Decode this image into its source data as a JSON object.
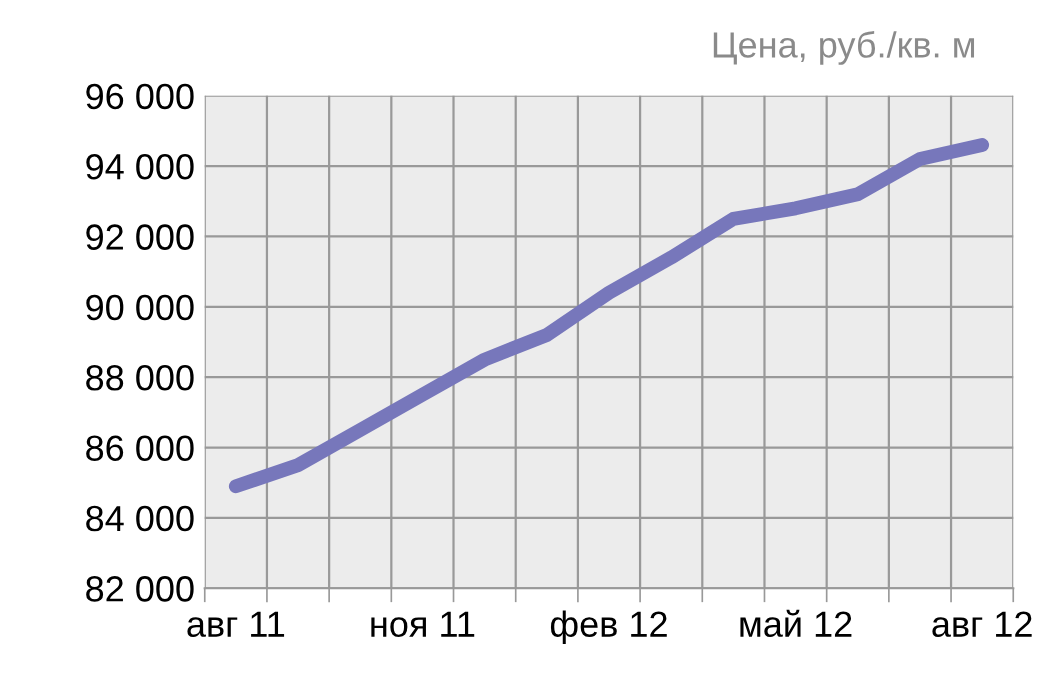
{
  "chart_data": {
    "type": "line",
    "title": "Цена, руб./кв. м",
    "categories": [
      "авг 11",
      null,
      null,
      "ноя 11",
      null,
      null,
      "фев 12",
      null,
      null,
      "май 12",
      null,
      null,
      "авг 12"
    ],
    "series": [
      {
        "color": "#7777bb",
        "values": [
          84900,
          85500,
          86500,
          87500,
          88500,
          89200,
          90400,
          91400,
          92500,
          92800,
          93200,
          94200,
          94600
        ]
      }
    ],
    "ylim": [
      82000,
      96000
    ],
    "yticks": [
      {
        "value": 82000,
        "label": "82 000"
      },
      {
        "value": 84000,
        "label": "84 000"
      },
      {
        "value": 86000,
        "label": "86 000"
      },
      {
        "value": 88000,
        "label": "88 000"
      },
      {
        "value": 90000,
        "label": "90 000"
      },
      {
        "value": 92000,
        "label": "92 000"
      },
      {
        "value": 94000,
        "label": "94 000"
      },
      {
        "value": 96000,
        "label": "96 000"
      }
    ],
    "grid": true,
    "marker": "none",
    "line_style": "solid"
  }
}
